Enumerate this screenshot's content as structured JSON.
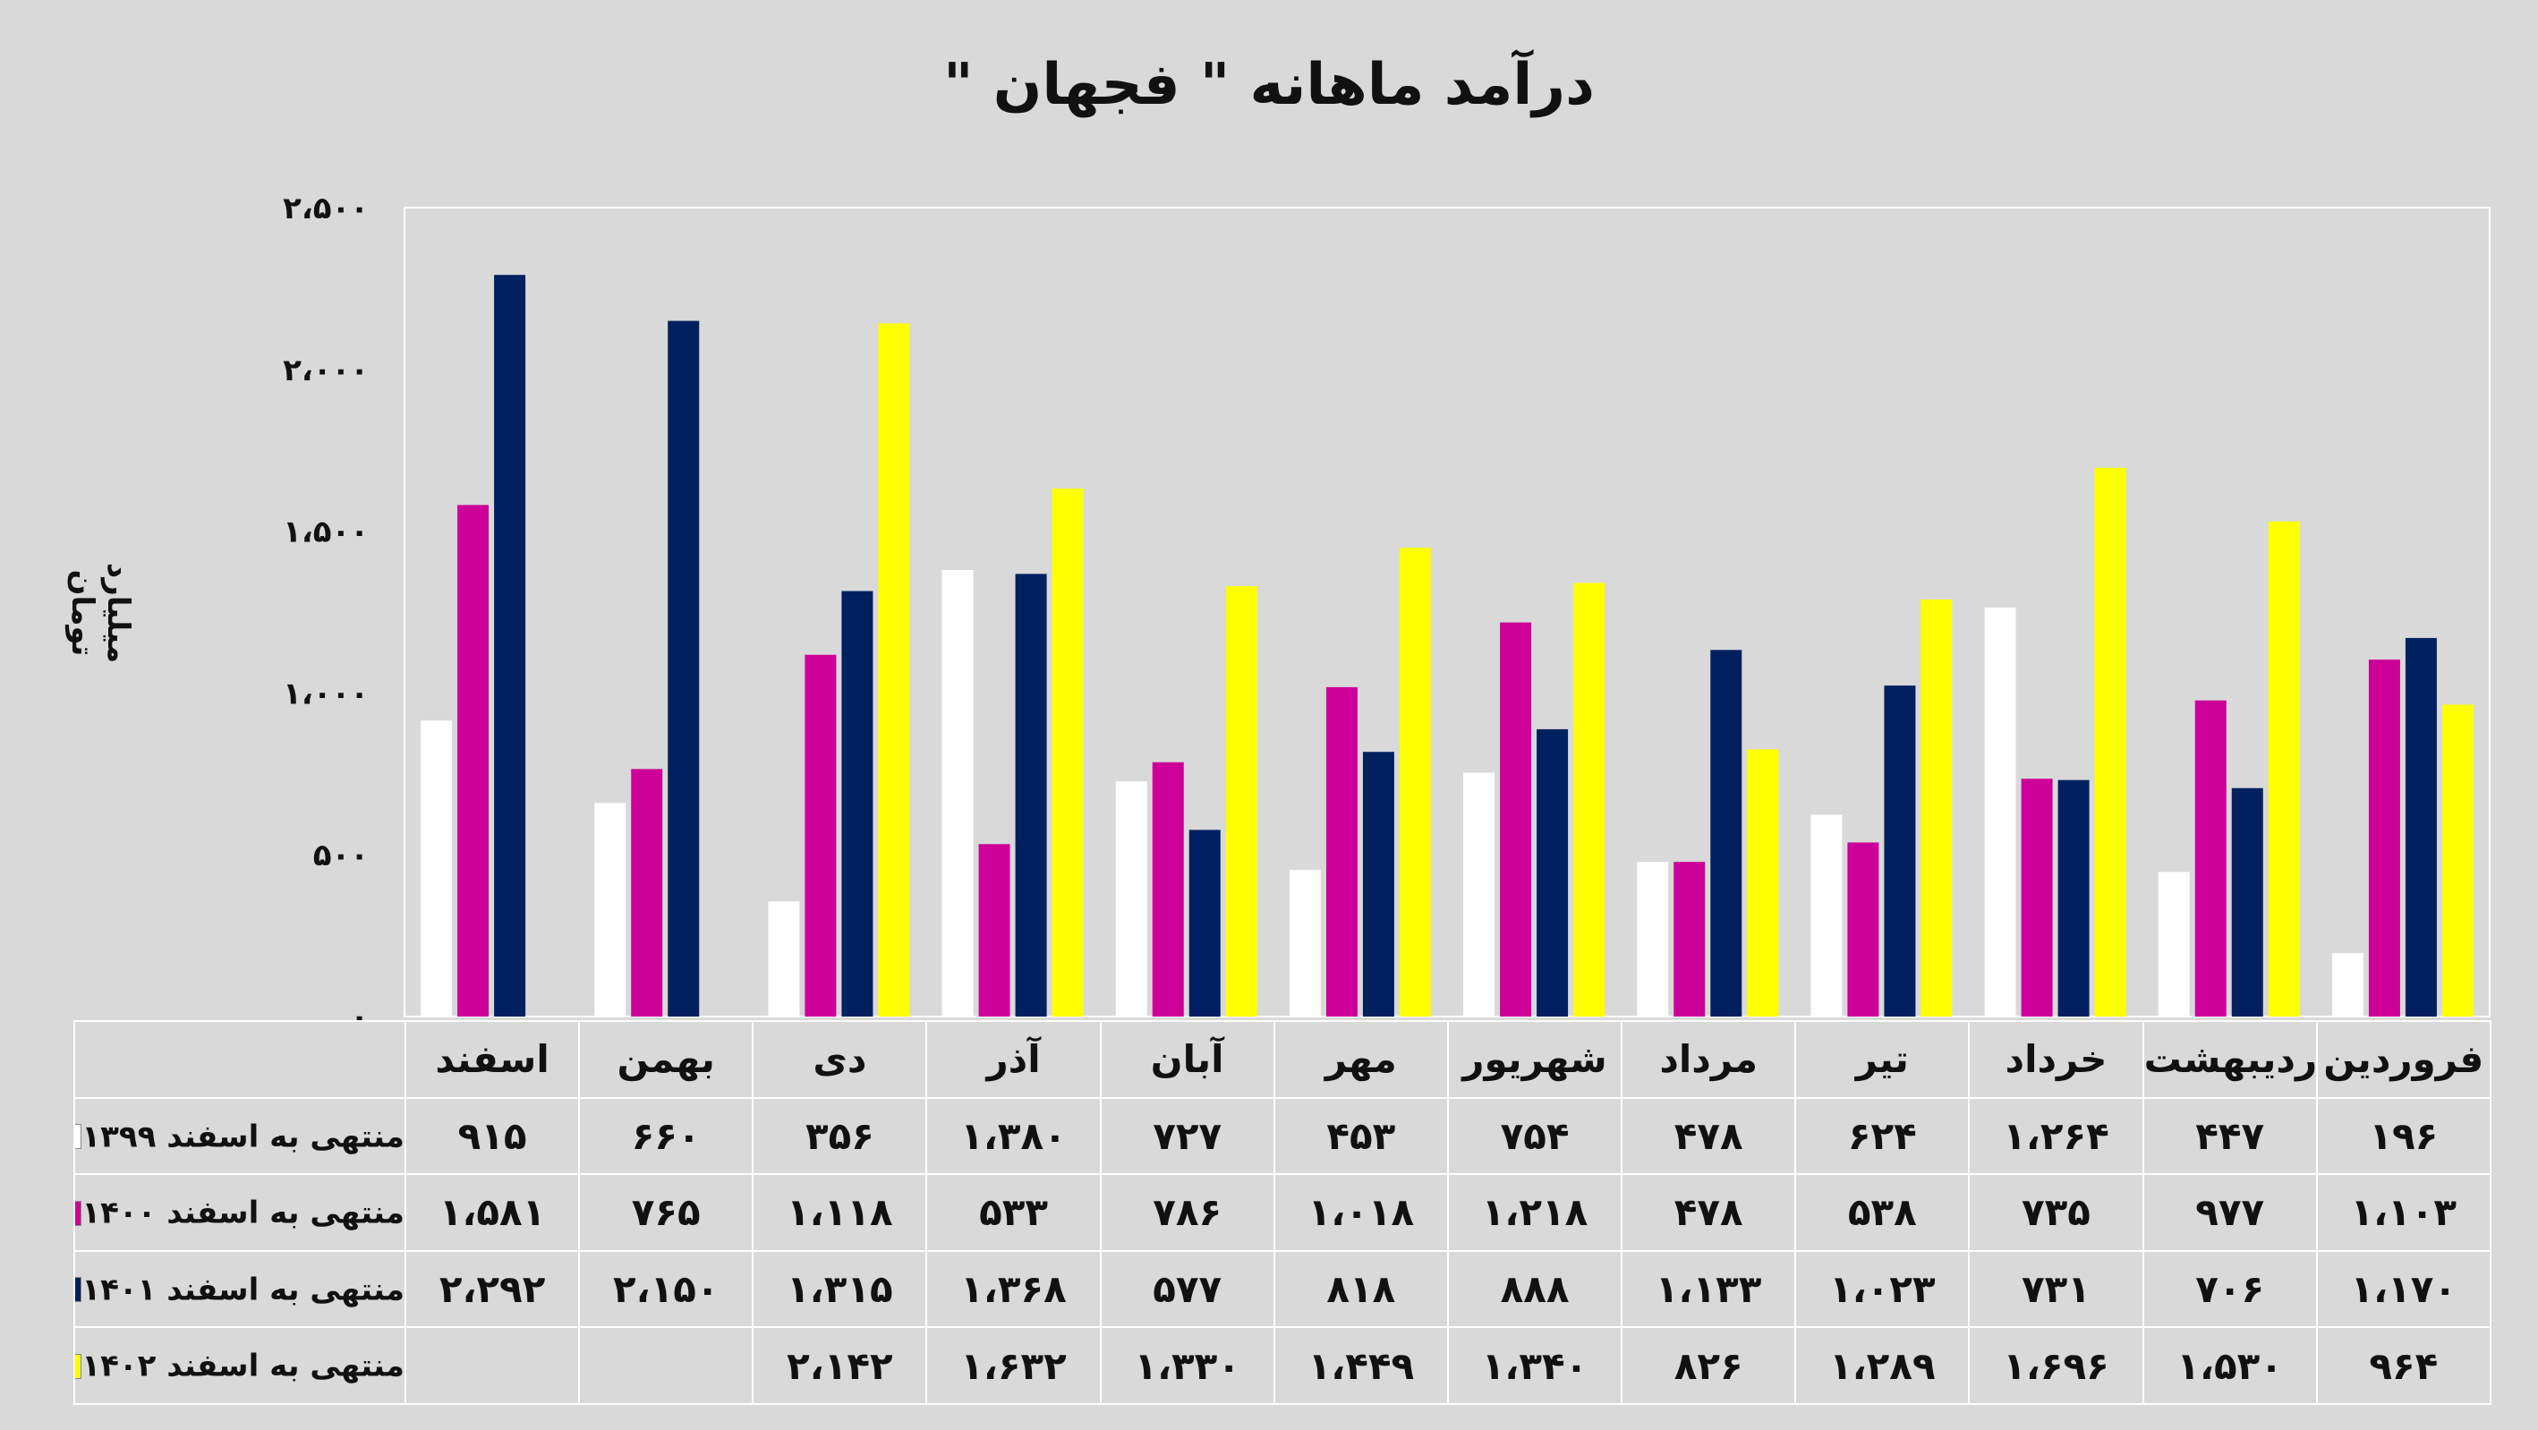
{
  "chart_data": {
    "type": "bar",
    "title": "درآمد ماهانه \" فجهان \"",
    "ylabel": "میلیارد تومان",
    "ylim": [
      0,
      2500
    ],
    "yticks": [
      0,
      500,
      1000,
      1500,
      2000,
      2500
    ],
    "ytick_labels": [
      "۰",
      "۵۰۰",
      "۱،۰۰۰",
      "۱،۵۰۰",
      "۲،۰۰۰",
      "۲،۵۰۰"
    ],
    "grid": false,
    "legend": "table-left",
    "categories": [
      "فروردین",
      "اردیبهشت",
      "خرداد",
      "تیر",
      "مرداد",
      "شهریور",
      "مهر",
      "آبان",
      "آذر",
      "دی",
      "بهمن",
      "اسفند"
    ],
    "series": [
      {
        "name": "منتهی به اسفند ۱۳۹۹",
        "color": "#ffffff",
        "values": [
          196,
          447,
          1264,
          624,
          478,
          754,
          453,
          727,
          1380,
          356,
          660,
          915
        ],
        "labels": [
          "۱۹۶",
          "۴۴۷",
          "۱،۲۶۴",
          "۶۲۴",
          "۴۷۸",
          "۷۵۴",
          "۴۵۳",
          "۷۲۷",
          "۱،۳۸۰",
          "۳۵۶",
          "۶۶۰",
          "۹۱۵"
        ]
      },
      {
        "name": "منتهی به اسفند ۱۴۰۰",
        "color": "#cc0099",
        "values": [
          1103,
          977,
          735,
          538,
          478,
          1218,
          1018,
          786,
          533,
          1118,
          765,
          1581
        ],
        "labels": [
          "۱،۱۰۳",
          "۹۷۷",
          "۷۳۵",
          "۵۳۸",
          "۴۷۸",
          "۱،۲۱۸",
          "۱،۰۱۸",
          "۷۸۶",
          "۵۳۳",
          "۱،۱۱۸",
          "۷۶۵",
          "۱،۵۸۱"
        ]
      },
      {
        "name": "منتهی به اسفند ۱۴۰۱",
        "color": "#002060",
        "values": [
          1170,
          706,
          731,
          1023,
          1133,
          888,
          818,
          577,
          1368,
          1315,
          2150,
          2292
        ],
        "labels": [
          "۱،۱۷۰",
          "۷۰۶",
          "۷۳۱",
          "۱،۰۲۳",
          "۱،۱۳۳",
          "۸۸۸",
          "۸۱۸",
          "۵۷۷",
          "۱،۳۶۸",
          "۱،۳۱۵",
          "۲،۱۵۰",
          "۲،۲۹۲"
        ]
      },
      {
        "name": "منتهی به اسفند ۱۴۰۲",
        "color": "#ffff00",
        "values": [
          964,
          1530,
          1696,
          1289,
          826,
          1340,
          1449,
          1330,
          1632,
          2142,
          null,
          null
        ],
        "labels": [
          "۹۶۴",
          "۱،۵۳۰",
          "۱،۶۹۶",
          "۱،۲۸۹",
          "۸۲۶",
          "۱،۳۴۰",
          "۱،۴۴۹",
          "۱،۳۳۰",
          "۱،۶۳۲",
          "۲،۱۴۲",
          "",
          ""
        ]
      }
    ]
  }
}
